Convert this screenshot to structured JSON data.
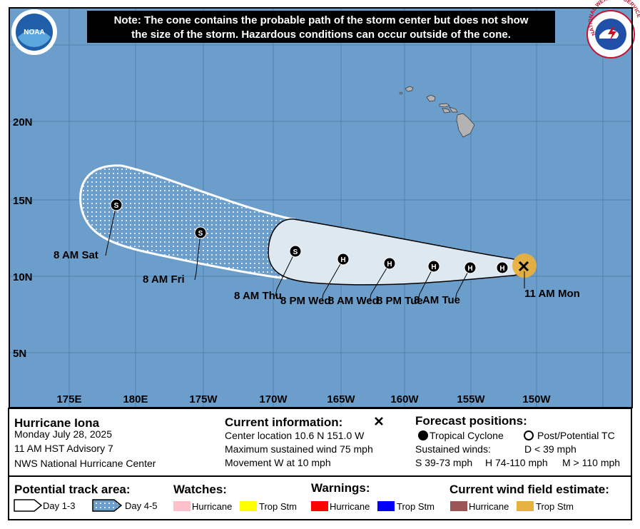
{
  "logos": {
    "noaa": "NOAA",
    "nws": "NATIONAL WEATHER SERVICE"
  },
  "note": {
    "line1": "Note: The cone contains the probable path of the storm center but does not show",
    "line2": "the size of the storm. Hazardous conditions can occur outside of the cone."
  },
  "map": {
    "lon_labels": [
      "175E",
      "180E",
      "175W",
      "170W",
      "165W",
      "160W",
      "155W",
      "150W"
    ],
    "lat_labels": [
      "20N",
      "15N",
      "10N",
      "5N"
    ],
    "points": [
      {
        "symbol": "S",
        "label": "8 AM Sat"
      },
      {
        "symbol": "S",
        "label": "8 AM Fri"
      },
      {
        "symbol": "S",
        "label": "8 AM Thu"
      },
      {
        "symbol": "H",
        "label": "8 PM Wed"
      },
      {
        "symbol": "H",
        "label": "8 AM Wed"
      },
      {
        "symbol": "H",
        "label": "8 PM Tue"
      },
      {
        "symbol": "H",
        "label": "8 AM Tue"
      },
      {
        "symbol": "H"
      }
    ],
    "current_label": "11 AM Mon"
  },
  "info": {
    "storm": "Hurricane Iona",
    "date": "Monday July 28, 2025",
    "advisory": "11 AM HST Advisory 7",
    "center": "NWS National Hurricane Center",
    "current_title": "Current information:",
    "location": "Center location 10.6 N 151.0 W",
    "wind": "Maximum sustained wind 75 mph",
    "movement": "Movement W at 10 mph",
    "forecast_title": "Forecast positions:",
    "tropical": "Tropical Cyclone",
    "post": "Post/Potential TC",
    "sustained": "Sustained winds:",
    "d": "D < 39 mph",
    "s": "S 39-73 mph",
    "h": "H 74-110 mph",
    "m": "M > 110 mph"
  },
  "legend": {
    "track_title": "Potential track area:",
    "day13": "Day 1-3",
    "day45": "Day 4-5",
    "watches": "Watches:",
    "watch_hu": "Hurricane",
    "watch_ts": "Trop Stm",
    "warnings": "Warnings:",
    "warn_hu": "Hurricane",
    "warn_ts": "Trop Stm",
    "wind_title": "Current wind field estimate:",
    "wind_hu": "Hurricane",
    "wind_ts": "Trop Stm"
  }
}
